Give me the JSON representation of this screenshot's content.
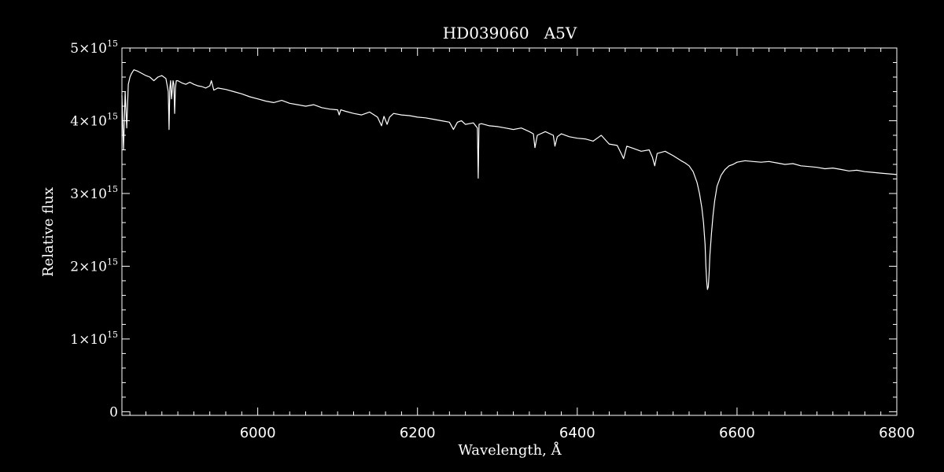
{
  "chart_data": {
    "type": "line",
    "title": "HD039060   A5V",
    "xlabel": "Wavelength, Å",
    "ylabel": "Relative flux",
    "xlim": [
      5830,
      6800
    ],
    "ylim": [
      -50000000000000.0,
      5000000000000000.0
    ],
    "x_ticks": [
      6000,
      6200,
      6400,
      6600,
      6800
    ],
    "x_tick_labels": [
      "6000",
      "6200",
      "6400",
      "6600",
      "6800"
    ],
    "x_minor_step": 20,
    "y_ticks": [
      0,
      1000000000000000.0,
      2000000000000000.0,
      3000000000000000.0,
      4000000000000000.0,
      5000000000000000.0
    ],
    "y_tick_labels": [
      {
        "mantissa": "0",
        "exponent": ""
      },
      {
        "mantissa": "1×10",
        "exponent": "15"
      },
      {
        "mantissa": "2×10",
        "exponent": "15"
      },
      {
        "mantissa": "3×10",
        "exponent": "15"
      },
      {
        "mantissa": "4×10",
        "exponent": "15"
      },
      {
        "mantissa": "5×10",
        "exponent": "15"
      }
    ],
    "y_minor_step": 200000000000000.0,
    "grid": false,
    "line_color": "#ffffff",
    "background_color": "#000000",
    "series": [
      {
        "values_unit": "relative flux",
        "x": [
          5830,
          5832,
          5834,
          5836,
          5838,
          5840,
          5842,
          5845,
          5850,
          5855,
          5860,
          5865,
          5870,
          5875,
          5880,
          5885,
          5888,
          5889,
          5890,
          5891,
          5892,
          5894,
          5895,
          5896,
          5897,
          5898,
          5900,
          5905,
          5910,
          5915,
          5920,
          5925,
          5930,
          5935,
          5940,
          5942,
          5945,
          5950,
          5960,
          5970,
          5980,
          5990,
          6000,
          6010,
          6020,
          6030,
          6040,
          6050,
          6060,
          6070,
          6080,
          6090,
          6100,
          6102,
          6104,
          6110,
          6120,
          6130,
          6140,
          6150,
          6155,
          6158,
          6162,
          6165,
          6170,
          6180,
          6190,
          6200,
          6210,
          6220,
          6230,
          6240,
          6245,
          6250,
          6255,
          6260,
          6270,
          6275,
          6276,
          6277,
          6280,
          6290,
          6300,
          6310,
          6320,
          6330,
          6340,
          6345,
          6347,
          6350,
          6360,
          6370,
          6372,
          6375,
          6380,
          6390,
          6400,
          6410,
          6420,
          6430,
          6440,
          6450,
          6455,
          6458,
          6462,
          6470,
          6480,
          6490,
          6494,
          6497,
          6500,
          6510,
          6520,
          6530,
          6535,
          6540,
          6545,
          6550,
          6553,
          6556,
          6558,
          6560,
          6561,
          6562,
          6563,
          6564,
          6565,
          6566,
          6568,
          6570,
          6572,
          6575,
          6580,
          6585,
          6590,
          6595,
          6600,
          6610,
          6620,
          6630,
          6640,
          6650,
          6660,
          6670,
          6680,
          6690,
          6700,
          6710,
          6720,
          6730,
          6740,
          6750,
          6760,
          6770,
          6780,
          6790,
          6800
        ],
        "y": [
          4350000000000000.0,
          3600000000000000.0,
          4400000000000000.0,
          3900000000000000.0,
          4500000000000000.0,
          4600000000000000.0,
          4650000000000000.0,
          4700000000000000.0,
          4680000000000000.0,
          4650000000000000.0,
          4620000000000000.0,
          4600000000000000.0,
          4550000000000000.0,
          4600000000000000.0,
          4620000000000000.0,
          4580000000000000.0,
          4400000000000000.0,
          3880000000000000.0,
          4450000000000000.0,
          4550000000000000.0,
          4300000000000000.0,
          4550000000000000.0,
          4500000000000000.0,
          4100000000000000.0,
          4450000000000000.0,
          4550000000000000.0,
          4550000000000000.0,
          4520000000000000.0,
          4500000000000000.0,
          4530000000000000.0,
          4500000000000000.0,
          4480000000000000.0,
          4470000000000000.0,
          4450000000000000.0,
          4480000000000000.0,
          4550000000000000.0,
          4420000000000000.0,
          4450000000000000.0,
          4430000000000000.0,
          4400000000000000.0,
          4370000000000000.0,
          4330000000000000.0,
          4300000000000000.0,
          4270000000000000.0,
          4250000000000000.0,
          4280000000000000.0,
          4240000000000000.0,
          4220000000000000.0,
          4200000000000000.0,
          4220000000000000.0,
          4180000000000000.0,
          4160000000000000.0,
          4150000000000000.0,
          4080000000000000.0,
          4150000000000000.0,
          4130000000000000.0,
          4100000000000000.0,
          4080000000000000.0,
          4120000000000000.0,
          4050000000000000.0,
          3930000000000000.0,
          4060000000000000.0,
          3950000000000000.0,
          4050000000000000.0,
          4100000000000000.0,
          4080000000000000.0,
          4070000000000000.0,
          4050000000000000.0,
          4040000000000000.0,
          4020000000000000.0,
          4000000000000000.0,
          3980000000000000.0,
          3880000000000000.0,
          3980000000000000.0,
          4000000000000000.0,
          3950000000000000.0,
          3970000000000000.0,
          3900000000000000.0,
          3210000000000000.0,
          3950000000000000.0,
          3960000000000000.0,
          3930000000000000.0,
          3920000000000000.0,
          3900000000000000.0,
          3880000000000000.0,
          3900000000000000.0,
          3850000000000000.0,
          3820000000000000.0,
          3630000000000000.0,
          3800000000000000.0,
          3850000000000000.0,
          3800000000000000.0,
          3650000000000000.0,
          3780000000000000.0,
          3820000000000000.0,
          3780000000000000.0,
          3760000000000000.0,
          3750000000000000.0,
          3720000000000000.0,
          3800000000000000.0,
          3680000000000000.0,
          3660000000000000.0,
          3550000000000000.0,
          3480000000000000.0,
          3650000000000000.0,
          3620000000000000.0,
          3580000000000000.0,
          3600000000000000.0,
          3500000000000000.0,
          3380000000000000.0,
          3550000000000000.0,
          3580000000000000.0,
          3520000000000000.0,
          3450000000000000.0,
          3420000000000000.0,
          3380000000000000.0,
          3300000000000000.0,
          3150000000000000.0,
          3000000000000000.0,
          2800000000000000.0,
          2600000000000000.0,
          2300000000000000.0,
          2000000000000000.0,
          1800000000000000.0,
          1680000000000000.0,
          1720000000000000.0,
          1900000000000000.0,
          2150000000000000.0,
          2450000000000000.0,
          2700000000000000.0,
          2900000000000000.0,
          3100000000000000.0,
          3250000000000000.0,
          3330000000000000.0,
          3380000000000000.0,
          3400000000000000.0,
          3430000000000000.0,
          3450000000000000.0,
          3440000000000000.0,
          3430000000000000.0,
          3440000000000000.0,
          3420000000000000.0,
          3400000000000000.0,
          3410000000000000.0,
          3380000000000000.0,
          3370000000000000.0,
          3360000000000000.0,
          3340000000000000.0,
          3350000000000000.0,
          3330000000000000.0,
          3310000000000000.0,
          3320000000000000.0,
          3300000000000000.0,
          3290000000000000.0,
          3280000000000000.0,
          3270000000000000.0,
          3260000000000000.0
        ]
      }
    ]
  }
}
